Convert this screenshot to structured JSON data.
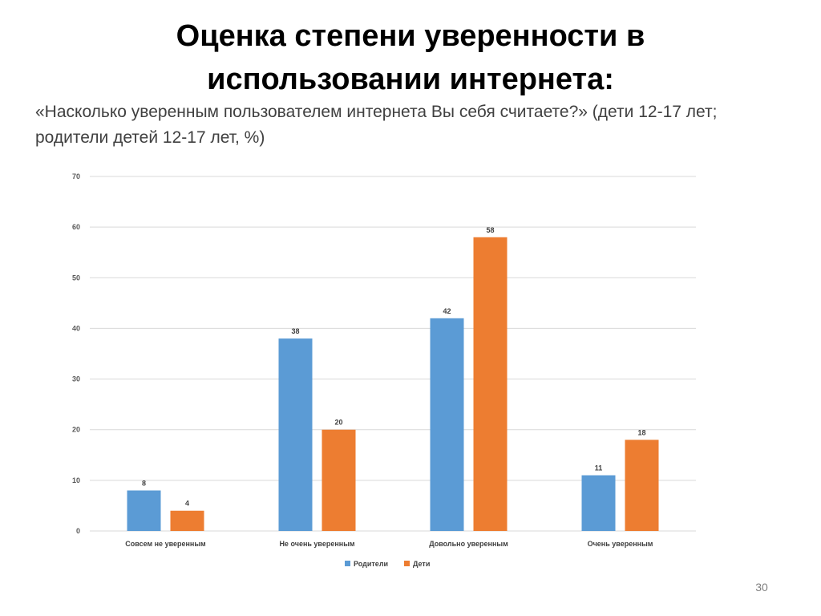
{
  "slide": {
    "title_line1": "Оценка степени уверенности в",
    "title_line2": "использовании интернета:",
    "subtitle_line1": "«Насколько уверенным пользователем интернета Вы себя считаете?» (дети 12-17 лет;",
    "subtitle_line2": "родители детей 12-17 лет, %)",
    "page_number": "30"
  },
  "chart_data": {
    "type": "bar",
    "categories": [
      "Совсем не уверенным",
      "Не очень уверенным",
      "Довольно уверенным",
      "Очень уверенным"
    ],
    "series": [
      {
        "name": "Родители",
        "values": [
          8,
          38,
          42,
          11
        ],
        "color": "#5B9BD5"
      },
      {
        "name": "Дети",
        "values": [
          4,
          20,
          58,
          18
        ],
        "color": "#ED7D31"
      }
    ],
    "ylim": [
      0,
      70
    ],
    "yticks": [
      0,
      10,
      20,
      30,
      40,
      50,
      60,
      70
    ],
    "grid": true,
    "legend_position": "bottom",
    "data_labels": true
  }
}
